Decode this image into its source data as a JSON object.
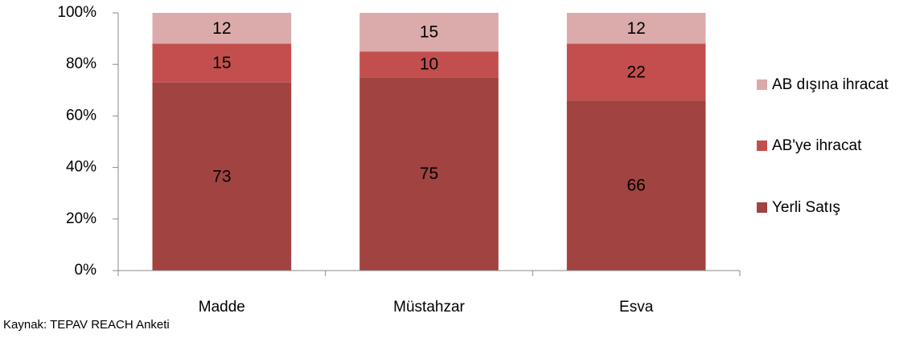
{
  "chart_data": {
    "type": "stacked_bar",
    "categories": [
      "Madde",
      "Müstahzar",
      "Esva"
    ],
    "series": [
      {
        "name": "Yerli Satış",
        "color": "#a04341",
        "values": [
          73,
          75,
          66
        ]
      },
      {
        "name": "AB'ye ihracat",
        "color": "#c24f4d",
        "values": [
          15,
          10,
          22
        ]
      },
      {
        "name": "AB dışına ihracat",
        "color": "#dbaaaa",
        "values": [
          12,
          15,
          12
        ]
      }
    ],
    "ylim": [
      0,
      100
    ],
    "yticks": [
      {
        "value": 0,
        "label": "0%"
      },
      {
        "value": 20,
        "label": "20%"
      },
      {
        "value": 40,
        "label": "40%"
      },
      {
        "value": 60,
        "label": "60%"
      },
      {
        "value": 80,
        "label": "80%"
      },
      {
        "value": 100,
        "label": "100%"
      }
    ],
    "grid": false,
    "legend": "right",
    "source": "Kaynak: TEPAV REACH Anketi"
  }
}
